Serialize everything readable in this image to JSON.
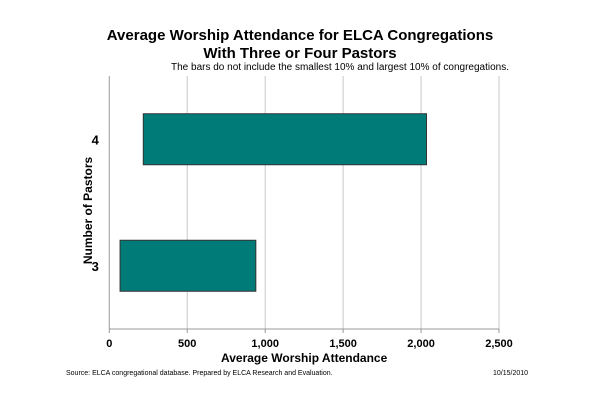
{
  "chart_data": {
    "type": "bar",
    "orientation": "horizontal",
    "bar_style": "floating-range",
    "title": "Average Worship Attendance for ELCA Congregations",
    "title_line2": "With Three or Four Pastors",
    "subtitle": "The bars do not include the smallest 10% and largest 10% of congregations.",
    "xlabel": "Average Worship Attendance",
    "ylabel": "Number of Pastors",
    "categories": [
      "3",
      "4"
    ],
    "ranges": [
      [
        69,
        940
      ],
      [
        218,
        2035
      ]
    ],
    "xlim": [
      0,
      2500
    ],
    "xticks": [
      0,
      500,
      1000,
      1500,
      2000,
      2500
    ],
    "xtick_labels": [
      "0",
      "500",
      "1,000",
      "1,500",
      "2,000",
      "2,500"
    ],
    "grid": "vertical",
    "bar_color": "#007b78",
    "bar_edge_color": "#333333",
    "grid_color": "#c8c8c8"
  },
  "footer": {
    "source": "Source: ELCA congregational database.  Prepared by ELCA Research and Evaluation.",
    "date": "10/15/2010"
  }
}
